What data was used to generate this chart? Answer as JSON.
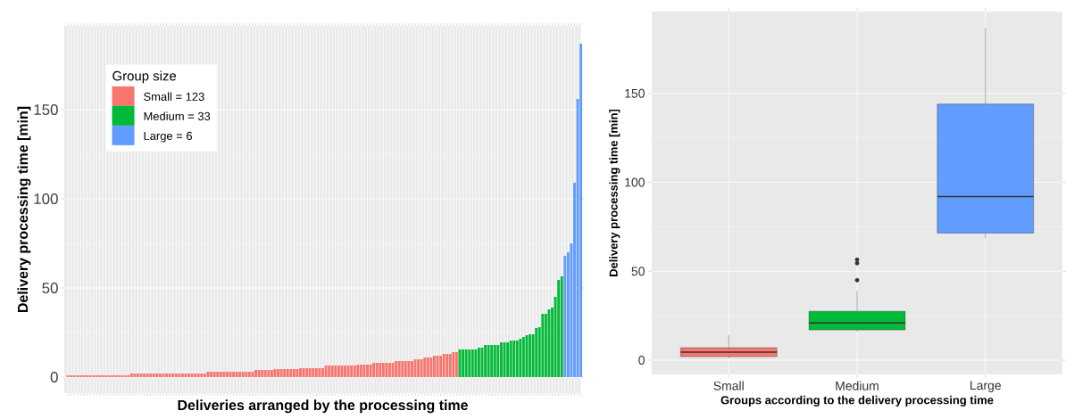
{
  "chart_data": [
    {
      "type": "bar",
      "xlabel": "Deliveries arranged by the processing time",
      "ylabel": "Delivery processing time [min]",
      "legend_title": "Group size",
      "legend": "top left",
      "grid": true,
      "ylim": [
        -9,
        197
      ],
      "yticks": [
        0,
        50,
        100,
        150
      ],
      "categories": [
        null,
        null,
        null,
        null,
        null,
        null,
        null,
        null,
        null,
        null,
        null,
        null,
        null,
        null,
        null,
        null,
        null,
        null,
        null,
        null,
        null,
        null,
        null,
        null,
        null,
        null,
        null,
        null,
        null,
        null,
        null,
        null,
        null,
        null,
        null,
        null,
        null,
        null,
        null,
        null,
        null,
        null,
        null,
        null,
        null,
        null,
        null,
        null,
        null,
        null,
        null,
        null,
        null,
        null,
        null,
        null,
        null,
        null,
        null,
        null,
        null,
        null,
        null,
        null,
        null,
        null,
        null,
        null,
        null,
        null,
        null,
        null,
        null,
        null,
        null,
        null,
        null,
        null,
        null,
        null,
        null,
        null,
        null,
        null,
        null,
        null,
        null,
        null,
        null,
        null,
        null,
        null,
        null,
        null,
        null,
        null,
        null,
        null,
        null,
        null,
        null,
        null,
        null,
        null,
        null,
        null,
        null,
        null,
        null,
        null,
        null,
        null,
        null,
        null,
        null,
        null,
        null,
        null,
        null,
        null,
        null,
        null,
        null,
        null,
        null,
        null,
        null,
        null,
        null,
        null,
        null,
        null,
        null,
        null,
        null,
        null,
        null,
        null,
        null,
        null,
        null,
        null,
        null,
        null,
        null,
        null,
        null,
        null,
        null,
        null,
        null,
        null,
        null,
        null,
        null,
        null,
        null,
        null,
        null,
        null,
        null,
        null
      ],
      "series": [
        {
          "name": "Small = 123",
          "color": "#f8766d",
          "values": [
            1,
            1,
            1,
            1,
            1,
            1,
            1,
            1,
            1,
            1,
            1,
            1,
            1,
            1,
            1,
            1,
            1,
            1,
            1,
            1,
            2,
            2,
            2,
            2,
            2,
            2,
            2,
            2,
            2,
            2,
            2,
            2,
            2,
            2,
            2,
            2,
            2,
            2,
            2,
            2,
            2,
            2,
            2,
            2,
            3,
            3,
            3,
            3,
            3,
            3,
            3,
            3,
            3,
            3,
            3,
            3,
            3,
            3,
            3,
            4,
            4,
            4,
            4,
            4,
            4,
            4.5,
            4.5,
            4.5,
            4.5,
            4.5,
            4.5,
            4.5,
            4.5,
            5,
            5,
            5,
            5,
            5,
            5,
            5,
            5,
            6.5,
            6.5,
            6.5,
            6.5,
            6.5,
            6.5,
            6.5,
            6.5,
            6.5,
            6.5,
            7,
            7,
            7,
            7,
            7,
            8,
            8,
            8,
            8,
            8,
            8,
            8,
            9,
            9,
            9,
            9,
            9,
            9,
            10,
            10,
            10,
            11,
            11,
            11,
            12,
            12,
            12,
            13,
            13,
            13,
            14,
            14,
            null,
            null,
            null,
            null,
            null,
            null,
            null,
            null,
            null,
            null,
            null,
            null,
            null,
            null,
            null,
            null,
            null,
            null,
            null,
            null,
            null,
            null,
            null,
            null,
            null,
            null,
            null,
            null,
            null,
            null,
            null,
            null,
            null,
            null,
            null,
            null,
            null,
            null,
            null
          ]
        },
        {
          "name": "Medium = 33",
          "color": "#00ba38",
          "values": [
            null,
            null,
            null,
            null,
            null,
            null,
            null,
            null,
            null,
            null,
            null,
            null,
            null,
            null,
            null,
            null,
            null,
            null,
            null,
            null,
            null,
            null,
            null,
            null,
            null,
            null,
            null,
            null,
            null,
            null,
            null,
            null,
            null,
            null,
            null,
            null,
            null,
            null,
            null,
            null,
            null,
            null,
            null,
            null,
            null,
            null,
            null,
            null,
            null,
            null,
            null,
            null,
            null,
            null,
            null,
            null,
            null,
            null,
            null,
            null,
            null,
            null,
            null,
            null,
            null,
            null,
            null,
            null,
            null,
            null,
            null,
            null,
            null,
            null,
            null,
            null,
            null,
            null,
            null,
            null,
            null,
            null,
            null,
            null,
            null,
            null,
            null,
            null,
            null,
            null,
            null,
            null,
            null,
            null,
            null,
            null,
            null,
            null,
            null,
            null,
            null,
            null,
            null,
            null,
            null,
            null,
            null,
            null,
            null,
            null,
            null,
            null,
            null,
            null,
            null,
            null,
            null,
            null,
            null,
            null,
            null,
            null,
            null,
            15.5,
            15.5,
            15.5,
            15.5,
            15.5,
            15.5,
            16.5,
            16.5,
            18,
            18,
            18,
            18,
            18,
            19.5,
            19.5,
            19.5,
            20.5,
            20.5,
            20.5,
            21.5,
            22.5,
            23.5,
            24,
            24,
            27.5,
            28,
            35.5,
            35.5,
            38,
            39,
            45,
            54.5,
            56.5,
            null,
            null,
            null,
            null,
            null,
            null
          ]
        },
        {
          "name": "Large = 6",
          "color": "#619cff",
          "values": [
            null,
            null,
            null,
            null,
            null,
            null,
            null,
            null,
            null,
            null,
            null,
            null,
            null,
            null,
            null,
            null,
            null,
            null,
            null,
            null,
            null,
            null,
            null,
            null,
            null,
            null,
            null,
            null,
            null,
            null,
            null,
            null,
            null,
            null,
            null,
            null,
            null,
            null,
            null,
            null,
            null,
            null,
            null,
            null,
            null,
            null,
            null,
            null,
            null,
            null,
            null,
            null,
            null,
            null,
            null,
            null,
            null,
            null,
            null,
            null,
            null,
            null,
            null,
            null,
            null,
            null,
            null,
            null,
            null,
            null,
            null,
            null,
            null,
            null,
            null,
            null,
            null,
            null,
            null,
            null,
            null,
            null,
            null,
            null,
            null,
            null,
            null,
            null,
            null,
            null,
            null,
            null,
            null,
            null,
            null,
            null,
            null,
            null,
            null,
            null,
            null,
            null,
            null,
            null,
            null,
            null,
            null,
            null,
            null,
            null,
            null,
            null,
            null,
            null,
            null,
            null,
            null,
            null,
            null,
            null,
            null,
            null,
            null,
            null,
            null,
            null,
            null,
            null,
            null,
            null,
            null,
            null,
            null,
            null,
            null,
            null,
            null,
            null,
            null,
            null,
            null,
            null,
            null,
            null,
            null,
            null,
            null,
            null,
            null,
            null,
            null,
            null,
            null,
            null,
            null,
            null,
            68,
            70,
            75,
            109,
            156,
            187
          ]
        }
      ]
    },
    {
      "type": "box",
      "xlabel": "Groups according to the delivery processing time",
      "ylabel": "Delivery processing time [min]",
      "grid": true,
      "ylim": [
        -8,
        196
      ],
      "yticks": [
        0,
        50,
        100,
        150
      ],
      "categories": [
        "Small",
        "Medium",
        "Large"
      ],
      "colors": [
        "#f8766d",
        "#00ba38",
        "#619cff"
      ],
      "boxes": [
        {
          "low": 1,
          "q1": 2,
          "median": 4.5,
          "q3": 7,
          "high": 14
        },
        {
          "low": 16,
          "q1": 17,
          "median": 21,
          "q3": 27.5,
          "high": 39,
          "outliers": [
            45,
            54.5,
            56.5
          ]
        },
        {
          "low": 68.5,
          "q1": 71.5,
          "median": 92,
          "q3": 144,
          "high": 187
        }
      ]
    }
  ]
}
